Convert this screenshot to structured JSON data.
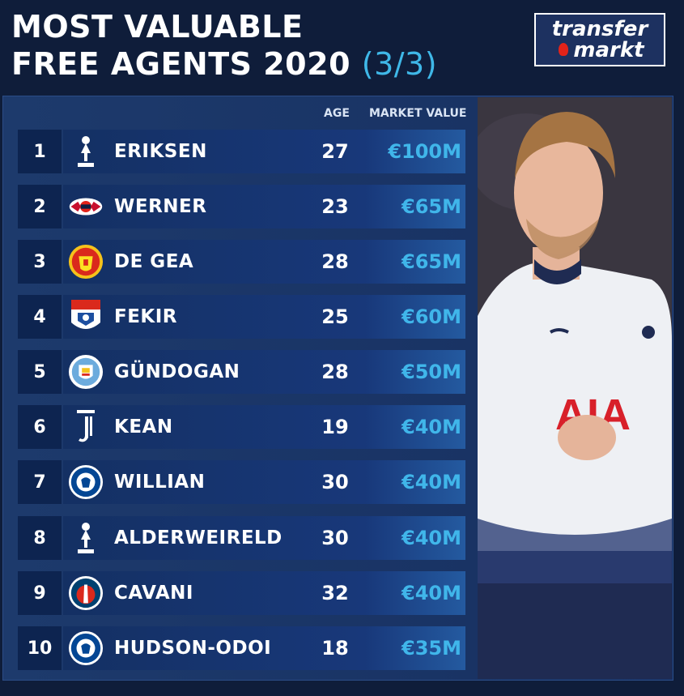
{
  "title": {
    "line1": "MOST VALUABLE",
    "line2": "FREE AGENTS 2020",
    "part": "(3/3)"
  },
  "logo": {
    "line1": "transfer",
    "line2": "markt"
  },
  "headers": {
    "age": "AGE",
    "market_value": "MARKET VALUE"
  },
  "colors": {
    "background": "#0f1d3a",
    "accent": "#40b6ea",
    "row": "#18387a"
  },
  "rows": [
    {
      "rank": "1",
      "name": "ERIKSEN",
      "age": "27",
      "value": "€100M",
      "crest": "tottenham-crest-icon"
    },
    {
      "rank": "2",
      "name": "WERNER",
      "age": "23",
      "value": "€65M",
      "crest": "rb-leipzig-crest-icon"
    },
    {
      "rank": "3",
      "name": "DE GEA",
      "age": "28",
      "value": "€65M",
      "crest": "manchester-united-crest-icon"
    },
    {
      "rank": "4",
      "name": "FEKIR",
      "age": "25",
      "value": "€60M",
      "crest": "lyon-crest-icon"
    },
    {
      "rank": "5",
      "name": "GÜNDOGAN",
      "age": "28",
      "value": "€50M",
      "crest": "manchester-city-crest-icon"
    },
    {
      "rank": "6",
      "name": "KEAN",
      "age": "19",
      "value": "€40M",
      "crest": "juventus-crest-icon"
    },
    {
      "rank": "7",
      "name": "WILLIAN",
      "age": "30",
      "value": "€40M",
      "crest": "chelsea-crest-icon"
    },
    {
      "rank": "8",
      "name": "ALDERWEIRELD",
      "age": "30",
      "value": "€40M",
      "crest": "tottenham-crest-icon"
    },
    {
      "rank": "9",
      "name": "CAVANI",
      "age": "32",
      "value": "€40M",
      "crest": "psg-crest-icon"
    },
    {
      "rank": "10",
      "name": "HUDSON-ODOI",
      "age": "18",
      "value": "€35M",
      "crest": "chelsea-crest-icon"
    }
  ]
}
